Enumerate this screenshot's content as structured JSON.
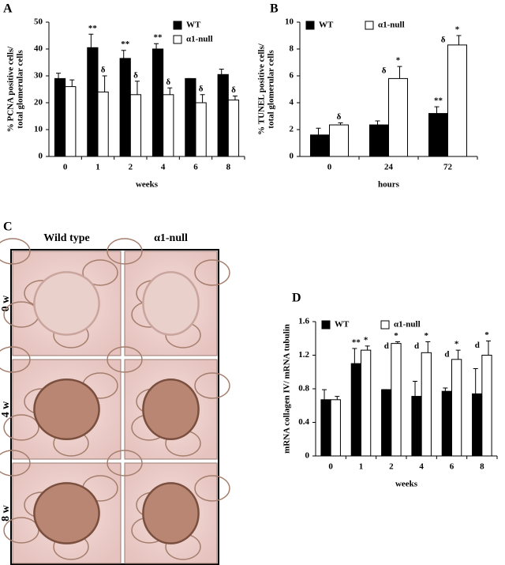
{
  "chart_data": [
    {
      "type": "bar",
      "panel": "A",
      "ylabel": [
        "% PCNA positive cells/",
        "total glomerular cells"
      ],
      "xlabel": "weeks",
      "categories": [
        "0",
        "1",
        "2",
        "4",
        "6",
        "8"
      ],
      "ylim": [
        0,
        50
      ],
      "yticks": [
        0,
        10,
        20,
        30,
        40,
        50
      ],
      "legend": "top-right",
      "series": [
        {
          "name": "WT",
          "color": "#000000",
          "values": [
            29,
            40.5,
            36.5,
            40,
            29,
            30.5
          ],
          "errors": [
            2,
            5,
            3,
            2,
            0,
            2
          ],
          "annotations": [
            [],
            [
              "**"
            ],
            [
              "**"
            ],
            [
              "**"
            ],
            [],
            []
          ]
        },
        {
          "name": "α1-null",
          "color": "#ffffff",
          "values": [
            26,
            24,
            23,
            23,
            20,
            21
          ],
          "errors": [
            2.5,
            6,
            5,
            2.5,
            3,
            1.5
          ],
          "annotations": [
            [],
            [
              "δ"
            ],
            [
              "δ"
            ],
            [
              "δ"
            ],
            [
              "δ"
            ],
            [
              "δ"
            ]
          ]
        }
      ]
    },
    {
      "type": "bar",
      "panel": "B",
      "ylabel": [
        "% TUNEL positive cells/",
        "total glomerular cells"
      ],
      "xlabel": "hours",
      "categories": [
        "0",
        "24",
        "72"
      ],
      "ylim": [
        0,
        10
      ],
      "yticks": [
        0,
        2,
        4,
        6,
        8,
        10
      ],
      "legend": "top-left",
      "series": [
        {
          "name": "WT",
          "color": "#000000",
          "values": [
            1.6,
            2.35,
            3.2
          ],
          "errors": [
            0.5,
            0.3,
            0.5
          ],
          "annotations": [
            [],
            [],
            [
              "**"
            ]
          ]
        },
        {
          "name": "α1-null",
          "color": "#ffffff",
          "values": [
            2.35,
            5.8,
            8.3
          ],
          "errors": [
            0.15,
            0.9,
            0.7
          ],
          "annotations": [
            [
              "δ"
            ],
            [
              "*",
              "δ"
            ],
            [
              "*",
              "δ"
            ]
          ]
        }
      ]
    },
    {
      "type": "bar",
      "panel": "D",
      "ylabel": [
        "mRNA collagen IV/ mRNA tubulin"
      ],
      "xlabel": "weeks",
      "categories": [
        "0",
        "1",
        "2",
        "4",
        "6",
        "8"
      ],
      "ylim": [
        0,
        1.6
      ],
      "yticks": [
        0,
        0.4,
        0.8,
        1.2,
        1.6
      ],
      "legend": "top-left",
      "series": [
        {
          "name": "WT",
          "color": "#000000",
          "values": [
            0.67,
            1.1,
            0.79,
            0.71,
            0.77,
            0.74
          ],
          "errors": [
            0.12,
            0.18,
            0,
            0.18,
            0.04,
            0.3
          ],
          "annotations": [
            [],
            [
              "**"
            ],
            [],
            [],
            [],
            []
          ]
        },
        {
          "name": "α1-null",
          "color": "#ffffff",
          "values": [
            0.67,
            1.26,
            1.34,
            1.23,
            1.15,
            1.2
          ],
          "errors": [
            0.04,
            0.05,
            0.02,
            0.13,
            0.11,
            0.17
          ],
          "annotations": [
            [],
            [
              "*"
            ],
            [
              "*",
              "d"
            ],
            [
              "*",
              "d"
            ],
            [
              "*",
              "d"
            ],
            [
              "*",
              "d"
            ]
          ]
        }
      ]
    }
  ],
  "panel_c": {
    "label": "C",
    "columns": [
      "Wild type",
      "α1-null"
    ],
    "rows": [
      "0 w",
      "4 w",
      "8 w"
    ]
  }
}
